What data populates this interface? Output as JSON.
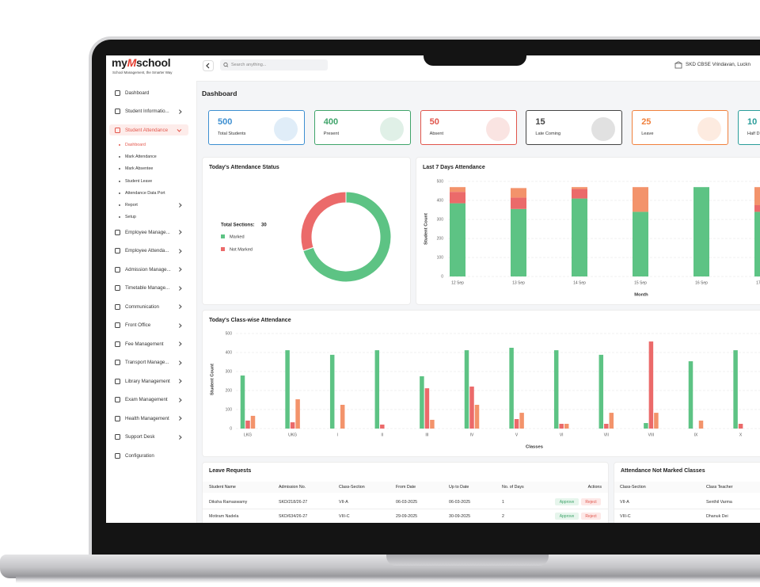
{
  "brand": {
    "logo_pre": "my",
    "logo_mark": "M",
    "logo_post": "school",
    "tagline": "School Management, the Smarter Way"
  },
  "topbar": {
    "search_placeholder": "Search anything...",
    "school": "SKD CBSE Vrindavan, Luckn"
  },
  "sidebar": {
    "active_index": 2,
    "active_sub_index": 0,
    "items": [
      {
        "label": "Dashboard",
        "expandable": false
      },
      {
        "label": "Student Informatio...",
        "expandable": true
      },
      {
        "label": "Student Attendance",
        "expandable": true
      },
      {
        "label": "Employee Manage...",
        "expandable": true
      },
      {
        "label": "Employee Attenda...",
        "expandable": true
      },
      {
        "label": "Admission Manage...",
        "expandable": true
      },
      {
        "label": "Timetable Manage...",
        "expandable": true
      },
      {
        "label": "Communication",
        "expandable": true
      },
      {
        "label": "Front Office",
        "expandable": true
      },
      {
        "label": "Fee Management",
        "expandable": true
      },
      {
        "label": "Transport Manage...",
        "expandable": true
      },
      {
        "label": "Library Management",
        "expandable": true
      },
      {
        "label": "Exam Management",
        "expandable": true
      },
      {
        "label": "Health Management",
        "expandable": true
      },
      {
        "label": "Support Desk",
        "expandable": true
      },
      {
        "label": "Configuration",
        "expandable": false
      }
    ],
    "submenu": [
      {
        "label": "Dashboard",
        "expandable": false
      },
      {
        "label": "Mark Attendance",
        "expandable": false
      },
      {
        "label": "Mark Absentee",
        "expandable": false
      },
      {
        "label": "Student Leave",
        "expandable": false
      },
      {
        "label": "Attendance Data Port",
        "expandable": false
      },
      {
        "label": "Report",
        "expandable": true
      },
      {
        "label": "Setup",
        "expandable": false
      }
    ]
  },
  "page_title": "Dashboard",
  "stats": [
    {
      "value": 500,
      "label": "Total Students",
      "color": "#3d8fd1"
    },
    {
      "value": 400,
      "label": "Present",
      "color": "#3fa46a"
    },
    {
      "value": 50,
      "label": "Absent",
      "color": "#e0554b"
    },
    {
      "value": 15,
      "label": "Late Coming",
      "color": "#444444"
    },
    {
      "value": 25,
      "label": "Leave",
      "color": "#f0803c"
    },
    {
      "value": 10,
      "label": "Half D",
      "color": "#2a9d9a"
    }
  ],
  "chart_data": [
    {
      "type": "donut",
      "title": "Today's Attendance Status",
      "total_label": "Total Sections:",
      "total": 30,
      "categories": [
        "Marked",
        "Not Marked"
      ],
      "values": [
        21,
        9
      ],
      "colors": [
        "#5dc384",
        "#eb6a6a"
      ]
    },
    {
      "type": "stacked_bar",
      "title": "Last 7 Days Attendance",
      "y_label": "Student Count",
      "x_label": "Month",
      "categories": [
        "12 Sep",
        "13 Sep",
        "14 Sep",
        "15 Sep",
        "16 Sep",
        "17 Sep"
      ],
      "series": [
        {
          "color": "#5dc384",
          "values": [
            385,
            355,
            410,
            340,
            470,
            340
          ]
        },
        {
          "color": "#eb6a6a",
          "values": [
            60,
            60,
            50,
            0,
            0,
            35
          ]
        },
        {
          "color": "#f3936b",
          "values": [
            25,
            50,
            10,
            130,
            0,
            95
          ]
        }
      ],
      "ylim": [
        0,
        500
      ],
      "yticks": [
        0,
        100,
        200,
        300,
        400,
        500
      ],
      "grid": true
    },
    {
      "type": "grouped_bar",
      "title": "Today's Class-wise Attendance",
      "y_label": "Student Count",
      "x_label": "Classes",
      "categories": [
        "LKG",
        "UKG",
        "I",
        "II",
        "III",
        "IV",
        "V",
        "VI",
        "VII",
        "VIII",
        "IX",
        "X"
      ],
      "series": [
        {
          "color": "#5dc384",
          "values": [
            279,
            412,
            388,
            412,
            275,
            412,
            425,
            412,
            388,
            29,
            354,
            412
          ]
        },
        {
          "color": "#eb6a6a",
          "values": [
            42,
            33,
            0,
            21,
            212,
            221,
            50,
            25,
            25,
            458,
            0,
            25
          ]
        },
        {
          "color": "#f3936b",
          "values": [
            67,
            154,
            125,
            0,
            46,
            125,
            83,
            25,
            83,
            83,
            42,
            0
          ]
        }
      ],
      "ylim": [
        0,
        500
      ],
      "yticks": [
        0,
        100,
        200,
        300,
        400,
        500
      ],
      "grid": true
    }
  ],
  "leave_requests": {
    "title": "Leave Requests",
    "headers": [
      "Student Name",
      "Admission No.",
      "Class-Section",
      "From Date",
      "Up to Date",
      "No. of Days",
      "Actions"
    ],
    "rows": [
      [
        "Diksha Ramaswamy",
        "SKD/218/26-27",
        "VII-A",
        "06-03-2025",
        "06-03-2025",
        1,
        "Approve",
        "Reject"
      ],
      [
        "Motiram Nadela",
        "SKD/634/26-27",
        "VIII-C",
        "29-09-2025",
        "30-09-2025",
        2,
        "Approve",
        "Reject"
      ]
    ]
  },
  "not_marked": {
    "title": "Attendance Not Marked Classes",
    "headers": [
      "Class-Section",
      "Class Teacher"
    ],
    "rows": [
      [
        "VII-A",
        "Senthil Varma"
      ],
      [
        "VIII-C",
        "Dhanuk Dei"
      ]
    ]
  }
}
